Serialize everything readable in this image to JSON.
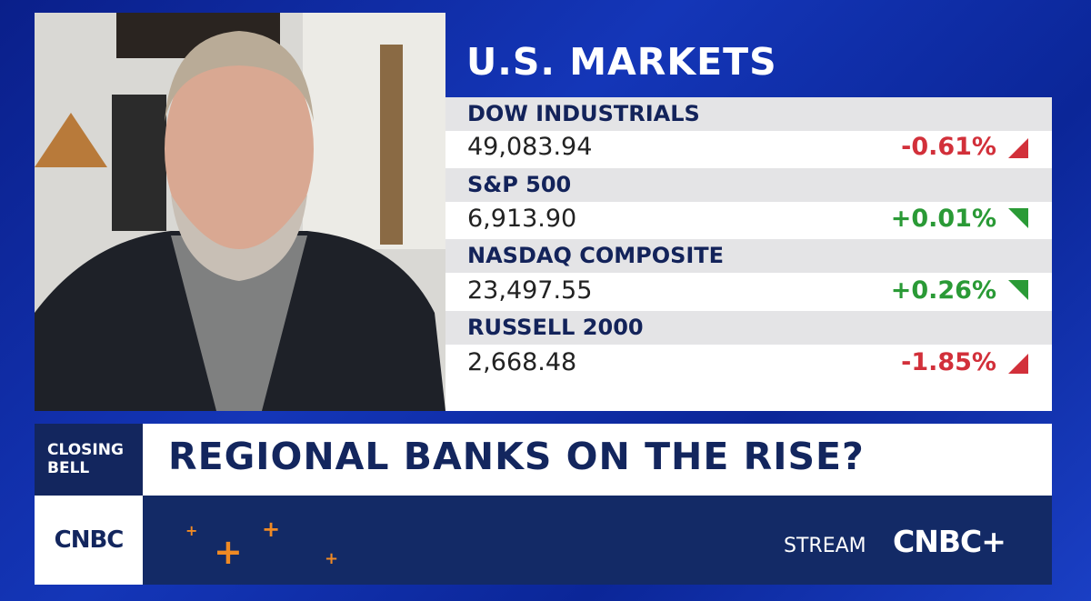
{
  "markets": {
    "title": "U.S. MARKETS",
    "rows": [
      {
        "name": "DOW INDUSTRIALS",
        "value": "49,083.94",
        "change": "-0.61%"
      },
      {
        "name": "S&P 500",
        "value": "6,913.90",
        "change": "+0.01%"
      },
      {
        "name": "NASDAQ COMPOSITE",
        "value": "23,497.55",
        "change": "+0.26%"
      },
      {
        "name": "RUSSELL 2000",
        "value": "2,668.48",
        "change": "-1.85%"
      }
    ]
  },
  "lower_third": {
    "show_line1": "CLOSING",
    "show_line2": "BELL",
    "headline": "REGIONAL BANKS ON THE RISE?",
    "logo": "CNBC",
    "stream": "STREAM",
    "stream_brand": "CNBC+"
  }
}
